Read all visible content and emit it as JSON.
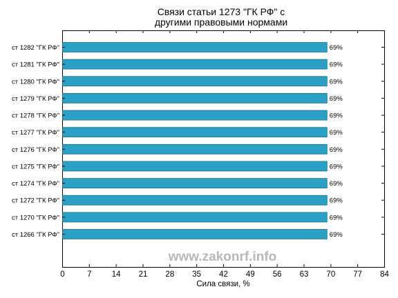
{
  "chart_data": {
    "type": "bar",
    "orientation": "horizontal",
    "title": "Связи статьи 1273 \"ГК РФ\" с\nдругими правовыми нормами",
    "xlabel": "Сила связи, %",
    "ylabel": "",
    "xlim": [
      0,
      84
    ],
    "xticks": [
      0,
      7,
      14,
      21,
      28,
      35,
      42,
      49,
      56,
      63,
      70,
      77,
      84
    ],
    "categories": [
      "ст 1282 \"ГК РФ\"",
      "ст 1281 \"ГК РФ\"",
      "ст 1280 \"ГК РФ\"",
      "ст 1279 \"ГК РФ\"",
      "ст 1278 \"ГК РФ\"",
      "ст 1277 \"ГК РФ\"",
      "ст 1276 \"ГК РФ\"",
      "ст 1275 \"ГК РФ\"",
      "ст 1274 \"ГК РФ\"",
      "ст 1272 \"ГК РФ\"",
      "ст 1270 \"ГК РФ\"",
      "ст 1266 \"ГК РФ\""
    ],
    "values": [
      69,
      69,
      69,
      69,
      69,
      69,
      69,
      69,
      69,
      69,
      69,
      69
    ],
    "data_labels": [
      "69%",
      "69%",
      "69%",
      "69%",
      "69%",
      "69%",
      "69%",
      "69%",
      "69%",
      "69%",
      "69%",
      "69%"
    ],
    "bar_color": "#2b9fc4",
    "grid": false,
    "legend": "none"
  },
  "watermark": "www.zakonrf.info"
}
